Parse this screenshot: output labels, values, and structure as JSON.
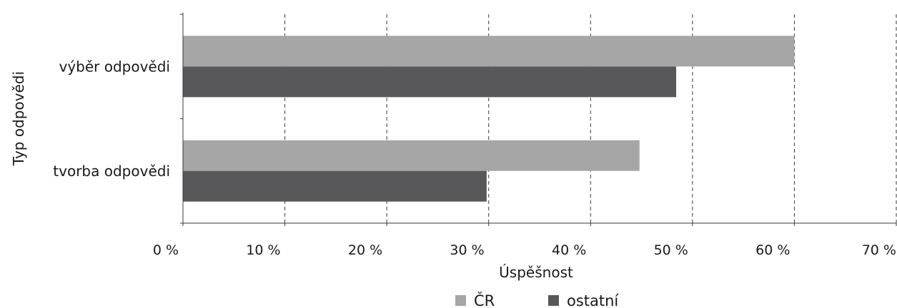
{
  "chart_data": {
    "type": "bar",
    "orientation": "horizontal",
    "categories": [
      "výběr odpovědi",
      "tvorba odpovědi"
    ],
    "series": [
      {
        "name": "ČR",
        "values": [
          60,
          44.8
        ],
        "color": "#a6a6a7"
      },
      {
        "name": "ostatní",
        "values": [
          48.4,
          29.8
        ],
        "color": "#58585a"
      }
    ],
    "xlim": [
      0,
      70
    ],
    "xticks": [
      0,
      10,
      20,
      30,
      40,
      50,
      60,
      70
    ],
    "tick_labels": [
      "0 %",
      "10 %",
      "20 %",
      "30 %",
      "40 %",
      "50 %",
      "60 %",
      "70 %"
    ],
    "xlabel": "Úspěšnost",
    "ylabel": "Typ odpovědi",
    "grid": "vertical-dashed",
    "legend_position": "bottom"
  }
}
